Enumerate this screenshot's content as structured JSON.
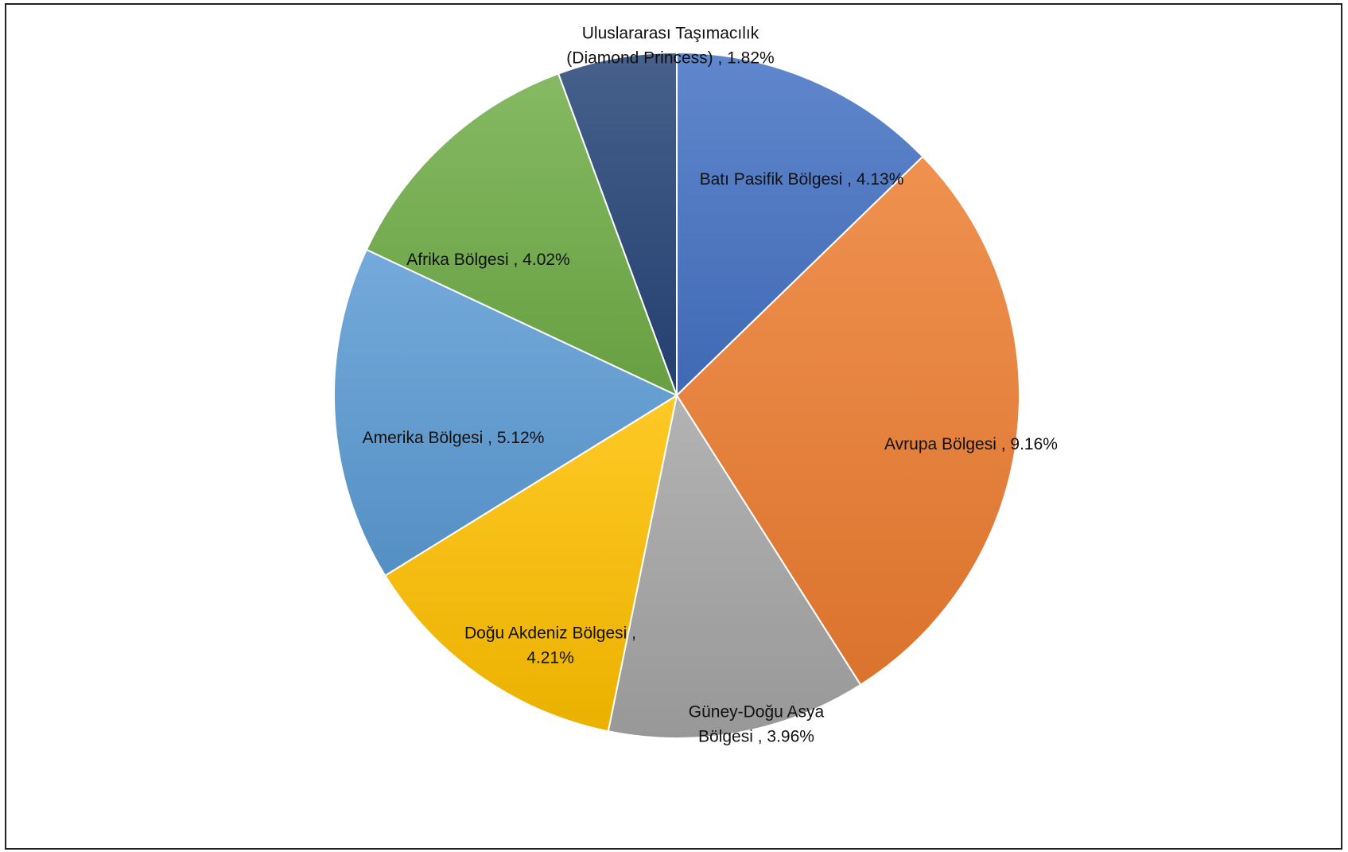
{
  "chart_data": {
    "type": "pie",
    "title": "",
    "start_angle_deg": 0,
    "direction": "clockwise",
    "slices": [
      {
        "name": "Batı Pasifik Bölgesi",
        "value": 4.13,
        "label_lines": [
          "Batı Pasifik Bölgesi , 4.13%"
        ],
        "color": "#4472C4"
      },
      {
        "name": "Avrupa Bölgesi",
        "value": 9.16,
        "label_lines": [
          "Avrupa Bölgesi , 9.16%"
        ],
        "color": "#ED7D31"
      },
      {
        "name": "Güney-Doğu Asya Bölgesi",
        "value": 3.96,
        "label_lines": [
          "Güney-Doğu Asya",
          "Bölgesi , 3.96%"
        ],
        "color": "#A5A5A5"
      },
      {
        "name": "Doğu Akdeniz Bölgesi",
        "value": 4.21,
        "label_lines": [
          "Doğu Akdeniz Bölgesi ,",
          "4.21%"
        ],
        "color": "#FFC000"
      },
      {
        "name": "Amerika Bölgesi",
        "value": 5.12,
        "label_lines": [
          "Amerika Bölgesi , 5.12%"
        ],
        "color": "#5B9BD5"
      },
      {
        "name": "Afrika Bölgesi",
        "value": 4.02,
        "label_lines": [
          "Afrika Bölgesi , 4.02%"
        ],
        "color": "#70AD47"
      },
      {
        "name": "Uluslararası Taşımacılık (Diamond Princess)",
        "value": 1.82,
        "label_lines": [
          "Uluslararası Taşımacılık",
          "(Diamond Princess) , 1.82%"
        ],
        "color": "#264478"
      }
    ]
  }
}
